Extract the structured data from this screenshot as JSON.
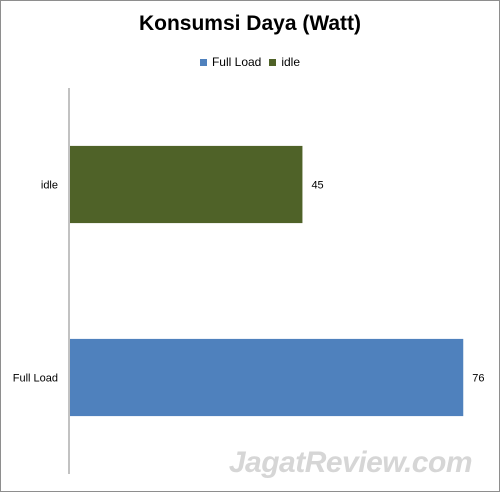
{
  "chart_data": {
    "type": "bar",
    "orientation": "horizontal",
    "title": "Konsumsi Daya (Watt)",
    "categories": [
      "idle",
      "Full Load"
    ],
    "series": [
      {
        "name": "Full Load",
        "color": "#4f81bd",
        "category": "Full Load",
        "value": 76
      },
      {
        "name": "idle",
        "color": "#4f6228",
        "category": "idle",
        "value": 45
      }
    ],
    "xlim": [
      0,
      80
    ],
    "legend": "top",
    "grid": false
  },
  "watermark": "JagatReview.com"
}
